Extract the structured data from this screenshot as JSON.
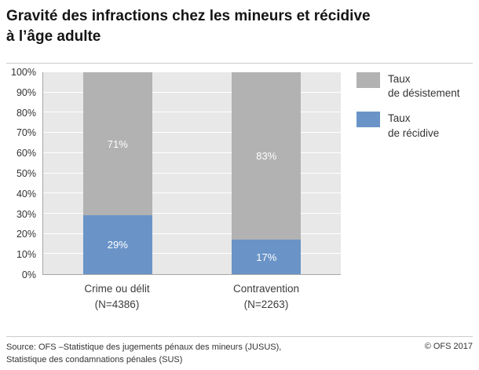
{
  "header": {
    "title_line1": "Gravité des infractions chez les mineurs et récidive",
    "title_line2": "à l’âge adulte"
  },
  "chart_data": {
    "type": "bar",
    "stacked": true,
    "title": "Gravité des infractions chez les mineurs et récidive à l’âge adulte",
    "categories": [
      {
        "label": "Crime ou délit",
        "sublabel": "(N=4386)"
      },
      {
        "label": "Contravention",
        "sublabel": "(N=2263)"
      }
    ],
    "series": [
      {
        "name": "Taux de récidive",
        "color": "#6a94c8",
        "values": [
          29,
          17
        ]
      },
      {
        "name": "Taux de désistement",
        "color": "#b2b2b2",
        "values": [
          71,
          83
        ]
      }
    ],
    "value_labels": [
      [
        "29%",
        "17%"
      ],
      [
        "71%",
        "83%"
      ]
    ],
    "ylim": [
      0,
      100
    ],
    "yticks": [
      "0%",
      "10%",
      "20%",
      "30%",
      "40%",
      "50%",
      "60%",
      "70%",
      "80%",
      "90%",
      "100%"
    ],
    "legend_position": "right",
    "plot_background": "#e8e8e8",
    "grid": "horizontal-white"
  },
  "legend": {
    "items": [
      {
        "label_line1": "Taux",
        "label_line2": "de désistement",
        "color": "#b2b2b2"
      },
      {
        "label_line1": "Taux",
        "label_line2": "de récidive",
        "color": "#6a94c8"
      }
    ]
  },
  "footer": {
    "source_line1": "Source: OFS –Statistique des jugements pénaux des mineurs (JUSUS),",
    "source_line2": "Statistique des condamnations pénales (SUS)",
    "copyright": "© OFS 2017"
  }
}
